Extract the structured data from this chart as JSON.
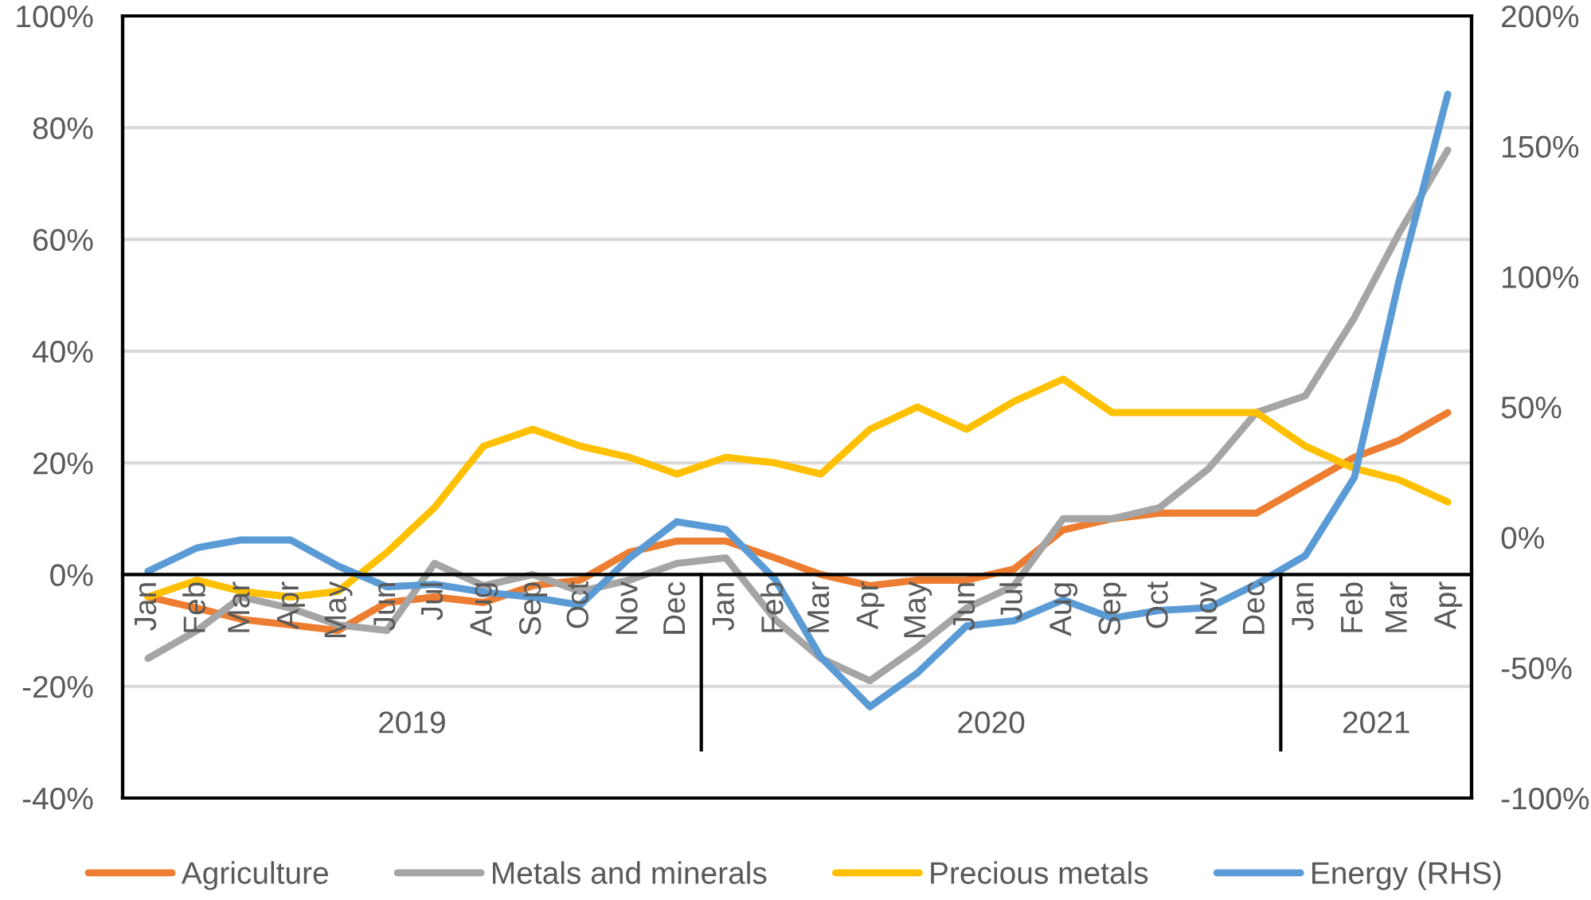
{
  "chart_data": {
    "type": "line",
    "x": [
      "2019-01",
      "2019-02",
      "2019-03",
      "2019-04",
      "2019-05",
      "2019-06",
      "2019-07",
      "2019-08",
      "2019-09",
      "2019-10",
      "2019-11",
      "2019-12",
      "2020-01",
      "2020-02",
      "2020-03",
      "2020-04",
      "2020-05",
      "2020-06",
      "2020-07",
      "2020-08",
      "2020-09",
      "2020-10",
      "2020-11",
      "2020-12",
      "2021-01",
      "2021-02",
      "2021-03",
      "2021-04"
    ],
    "xlim": [
      "2018-12-16",
      "2021-04-16"
    ],
    "xticks": [
      {
        "value": "2019-01",
        "label": "Jan"
      },
      {
        "value": "2019-02",
        "label": "Feb"
      },
      {
        "value": "2019-03",
        "label": "Mar"
      },
      {
        "value": "2019-04",
        "label": "Apr"
      },
      {
        "value": "2019-05",
        "label": "May"
      },
      {
        "value": "2019-06",
        "label": "Jun"
      },
      {
        "value": "2019-07",
        "label": "Jul"
      },
      {
        "value": "2019-08",
        "label": "Aug"
      },
      {
        "value": "2019-09",
        "label": "Sep"
      },
      {
        "value": "2019-10",
        "label": "Oct"
      },
      {
        "value": "2019-11",
        "label": "Nov"
      },
      {
        "value": "2019-12",
        "label": "Dec"
      },
      {
        "value": "2020-01",
        "label": "Jan"
      },
      {
        "value": "2020-02",
        "label": "Feb"
      },
      {
        "value": "2020-03",
        "label": "Mar"
      },
      {
        "value": "2020-04",
        "label": "Apr"
      },
      {
        "value": "2020-05",
        "label": "May"
      },
      {
        "value": "2020-06",
        "label": "Jun"
      },
      {
        "value": "2020-07",
        "label": "Jul"
      },
      {
        "value": "2020-08",
        "label": "Aug"
      },
      {
        "value": "2020-09",
        "label": "Sep"
      },
      {
        "value": "2020-10",
        "label": "Oct"
      },
      {
        "value": "2020-11",
        "label": "Nov"
      },
      {
        "value": "2020-12",
        "label": "Dec"
      },
      {
        "value": "2021-01",
        "label": "Jan"
      },
      {
        "value": "2021-02",
        "label": "Feb"
      },
      {
        "value": "2021-03",
        "label": "Mar"
      },
      {
        "value": "2021-04",
        "label": "Apr"
      }
    ],
    "ylim": [
      -40,
      100
    ],
    "yticks": [
      {
        "value": -40,
        "label": "-40%"
      },
      {
        "value": -20,
        "label": "-20%"
      },
      {
        "value": 0,
        "label": "0%"
      },
      {
        "value": 20,
        "label": "20%"
      },
      {
        "value": 40,
        "label": "40%"
      },
      {
        "value": 60,
        "label": "60%"
      },
      {
        "value": 80,
        "label": "80%"
      },
      {
        "value": 100,
        "label": "100%"
      }
    ],
    "y2lim": [
      -100,
      200
    ],
    "y2ticks": [
      {
        "value": -100,
        "label": "-100%"
      },
      {
        "value": -50,
        "label": "-50%"
      },
      {
        "value": 0,
        "label": "0%"
      },
      {
        "value": 50,
        "label": "50%"
      },
      {
        "value": 100,
        "label": "100%"
      },
      {
        "value": 150,
        "label": "150%"
      },
      {
        "value": 200,
        "label": "200%"
      }
    ],
    "grid": "y",
    "legend": "bottom",
    "annotations": [
      "2019",
      "2020",
      "2021"
    ],
    "series": [
      {
        "name": "Agriculture",
        "color": "#ed7d31",
        "values": [
          -4,
          -6,
          -8,
          -9,
          -10,
          -5,
          -4,
          -5,
          -2,
          -1,
          4,
          6,
          6,
          3,
          0,
          -2,
          -1,
          -1,
          1,
          8,
          10,
          11,
          11,
          11,
          16,
          21,
          24,
          29
        ]
      },
      {
        "name": "Metals and minerals",
        "color": "#a5a5a5",
        "values": [
          -15,
          -10,
          -4,
          -6,
          -9,
          -10,
          2,
          -2,
          0,
          -3,
          -1,
          2,
          3,
          -8,
          -15,
          -19,
          -13,
          -6,
          -2,
          10,
          10,
          12,
          19,
          29,
          32,
          46,
          61,
          76
        ]
      },
      {
        "name": "Precious metals",
        "color": "#ffc000",
        "values": [
          -4,
          -1,
          -3,
          -4,
          -3,
          4,
          12,
          23,
          26,
          23,
          21,
          18,
          21,
          20,
          18,
          26,
          30,
          26,
          31,
          35,
          29,
          29,
          29,
          29,
          23,
          19,
          17,
          13
        ]
      },
      {
        "name": "Energy (RHS)",
        "color": "#5b9bd5",
        "axis": "y2",
        "values": [
          -13,
          -4,
          -1,
          -1,
          -11,
          -19,
          -18,
          -21,
          -23,
          -26,
          -8,
          6,
          3,
          -16,
          -46,
          -65,
          -52,
          -34,
          -32,
          -24,
          -31,
          -28,
          -27,
          -18,
          -7,
          23,
          98,
          170
        ]
      }
    ]
  }
}
